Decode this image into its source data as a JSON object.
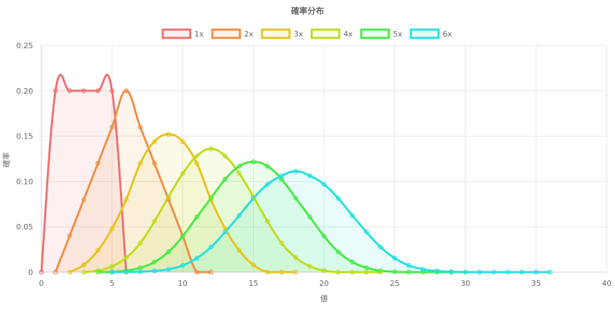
{
  "chart_data": {
    "type": "line",
    "title": "確率分布",
    "xlabel": "値",
    "ylabel": "確率",
    "xlim": [
      0,
      40
    ],
    "ylim": [
      0,
      0.25
    ],
    "xticks": [
      0,
      5,
      10,
      15,
      20,
      25,
      30,
      35,
      40
    ],
    "yticks": [
      0,
      0.05,
      0.1,
      0.15,
      0.2,
      0.25
    ],
    "ytick_labels": [
      "0",
      "0.05",
      "0.10",
      "0.15",
      "0.20",
      "0.25"
    ],
    "grid": true,
    "legend": "top-center",
    "fill": true,
    "series": [
      {
        "name": "1x",
        "color": "#ee7070",
        "x": [
          0,
          1,
          2,
          3,
          4,
          5,
          6
        ],
        "y": [
          0,
          0.2,
          0.2,
          0.2,
          0.2,
          0.2,
          0
        ]
      },
      {
        "name": "2x",
        "color": "#ee8f44",
        "x": [
          1,
          2,
          3,
          4,
          5,
          6,
          7,
          8,
          9,
          10,
          11,
          12
        ],
        "y": [
          0,
          0.04,
          0.08,
          0.12,
          0.16,
          0.2,
          0.16,
          0.12,
          0.08,
          0.04,
          0,
          0
        ]
      },
      {
        "name": "3x",
        "color": "#e6c31a",
        "x": [
          2,
          3,
          4,
          5,
          6,
          7,
          8,
          9,
          10,
          11,
          12,
          13,
          14,
          15,
          16,
          17,
          18
        ],
        "y": [
          0,
          0.008,
          0.024,
          0.048,
          0.08,
          0.12,
          0.144,
          0.152,
          0.144,
          0.12,
          0.08,
          0.048,
          0.024,
          0.008,
          0,
          0,
          0
        ]
      },
      {
        "name": "4x",
        "color": "#bddd18",
        "x": [
          3,
          4,
          5,
          6,
          7,
          8,
          9,
          10,
          11,
          12,
          13,
          14,
          15,
          16,
          17,
          18,
          19,
          20,
          21,
          22,
          23,
          24
        ],
        "y": [
          0,
          0.0016,
          0.0064,
          0.016,
          0.032,
          0.056,
          0.0832,
          0.1088,
          0.128,
          0.136,
          0.128,
          0.1088,
          0.0832,
          0.056,
          0.032,
          0.016,
          0.0064,
          0.0016,
          0,
          0,
          0,
          0
        ]
      },
      {
        "name": "5x",
        "color": "#44ea44",
        "x": [
          4,
          5,
          6,
          7,
          8,
          9,
          10,
          11,
          12,
          13,
          14,
          15,
          16,
          17,
          18,
          19,
          20,
          21,
          22,
          23,
          24,
          25,
          26,
          27,
          28,
          29,
          30
        ],
        "y": [
          0,
          0.0003,
          0.0016,
          0.0048,
          0.0112,
          0.0224,
          0.0397,
          0.0608,
          0.0816,
          0.1024,
          0.1168,
          0.1216,
          0.1168,
          0.1024,
          0.0816,
          0.0608,
          0.0397,
          0.0224,
          0.0112,
          0.0048,
          0.0016,
          0.0003,
          0,
          0,
          0,
          0,
          0
        ]
      },
      {
        "name": "6x",
        "color": "#22e0e0",
        "x": [
          5,
          6,
          7,
          8,
          9,
          10,
          11,
          12,
          13,
          14,
          15,
          16,
          17,
          18,
          19,
          20,
          21,
          22,
          23,
          24,
          25,
          26,
          27,
          28,
          29,
          30,
          31,
          32,
          33,
          34,
          35,
          36
        ],
        "y": [
          0,
          0.0001,
          0.0004,
          0.0013,
          0.0032,
          0.0073,
          0.0154,
          0.0276,
          0.0443,
          0.0625,
          0.0814,
          0.0968,
          0.1062,
          0.1112,
          0.1062,
          0.0968,
          0.0814,
          0.0625,
          0.0443,
          0.0276,
          0.0154,
          0.0073,
          0.0032,
          0.0013,
          0.0004,
          0.0001,
          0,
          0,
          0,
          0,
          0,
          0
        ]
      }
    ]
  }
}
